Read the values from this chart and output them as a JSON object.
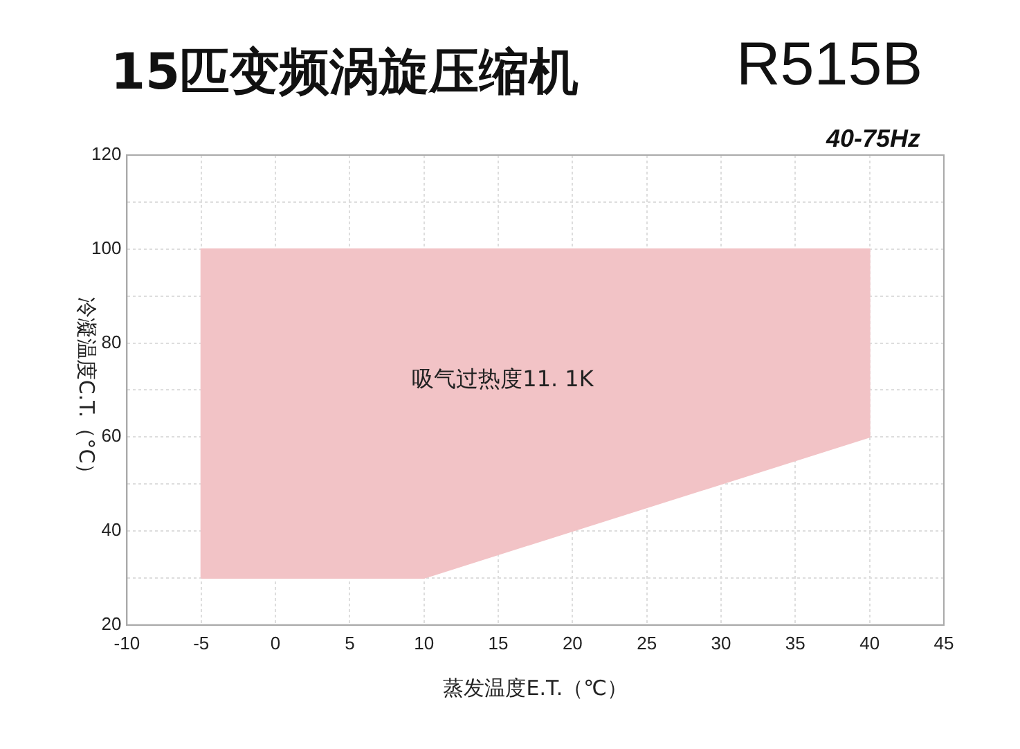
{
  "chart_data": {
    "type": "area",
    "title": "15匹变频涡旋压缩机",
    "subtitle": "R515B",
    "xlabel": "蒸发温度E.T.（℃）",
    "ylabel": "冷凝温度C.T.（°C）",
    "annotations": [
      "40-75Hz",
      "吸气过热度11. 1K"
    ],
    "series": [
      {
        "type": "area",
        "color": "#f2c3c6",
        "x": [
          -5,
          -5,
          40,
          40,
          10,
          -5
        ],
        "values": [
          30,
          100,
          100,
          60,
          30,
          30
        ]
      }
    ],
    "xlim": [
      -10,
      45
    ],
    "xticks": [
      -10,
      -5,
      0,
      5,
      10,
      15,
      20,
      25,
      30,
      35,
      40,
      45
    ],
    "ylim": [
      20,
      120
    ],
    "yticks": [
      20,
      {
        "value": 30,
        "label": null
      },
      40,
      {
        "value": 50,
        "label": null
      },
      60,
      {
        "value": 70,
        "label": null
      },
      80,
      {
        "value": 90,
        "label": null
      },
      100,
      {
        "value": 110,
        "label": null
      },
      120
    ],
    "grid": true,
    "legend": false
  }
}
